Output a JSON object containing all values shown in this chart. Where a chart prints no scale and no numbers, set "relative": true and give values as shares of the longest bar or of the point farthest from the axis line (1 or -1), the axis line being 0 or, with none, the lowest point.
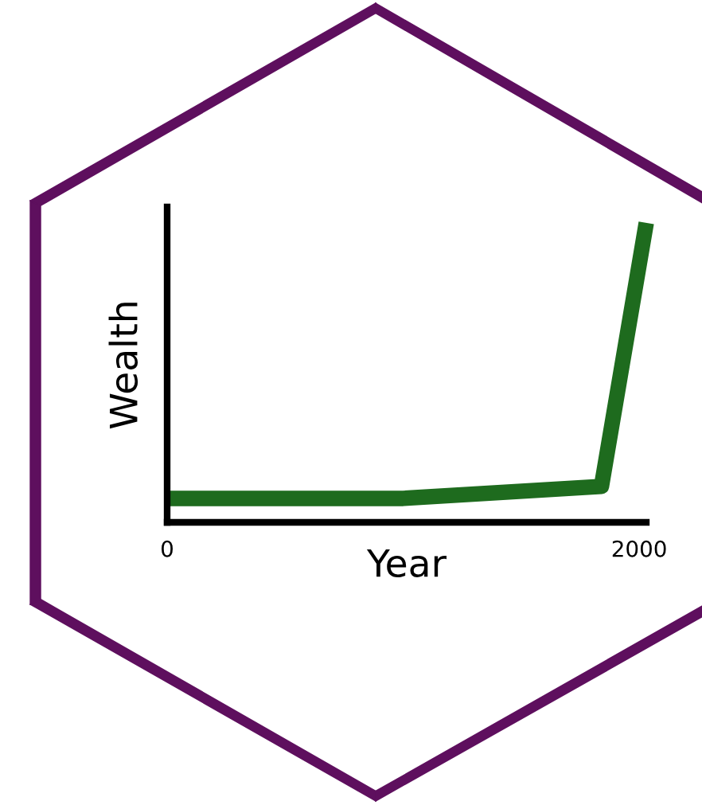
{
  "chart_data": {
    "type": "line",
    "relative": true,
    "xlabel": "Year",
    "ylabel": "Wealth",
    "x": [
      0,
      1000,
      1840,
      2030
    ],
    "series": [
      {
        "color": "#1e6b1e",
        "values": [
          0.08,
          0.08,
          0.12,
          1
        ]
      }
    ],
    "xlim": [
      0,
      2030
    ],
    "xticks": [
      0,
      2000
    ],
    "grid": false,
    "legend": false,
    "marker": "none",
    "line_style": "solid"
  }
}
